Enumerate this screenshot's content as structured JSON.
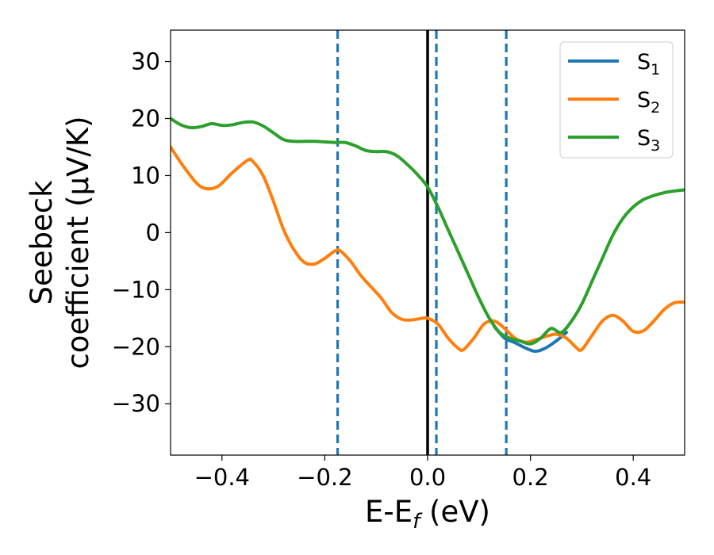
{
  "chart_data": {
    "type": "line",
    "xlabel": {
      "main": "E-E",
      "sub": "f",
      "tail": " (eV)"
    },
    "ylabel": {
      "line1": "Seebeck",
      "line2": "coefficient  (μV/K)"
    },
    "xlim": [
      -0.5,
      0.5
    ],
    "ylim": [
      -39,
      35.5
    ],
    "xticks": [
      -0.4,
      -0.2,
      0.0,
      0.2,
      0.4
    ],
    "xtick_labels": [
      "−0.4",
      "−0.2",
      "0.0",
      "0.2",
      "0.4"
    ],
    "yticks": [
      30,
      20,
      10,
      0,
      -10,
      -20,
      -30
    ],
    "ytick_labels": [
      "30",
      "20",
      "10",
      "0",
      "−10",
      "−20",
      "−30"
    ],
    "grid": false,
    "legend_position": "top-right",
    "vlines": [
      {
        "x": 0.0,
        "style": "solid",
        "color": "#000000"
      },
      {
        "x": -0.175,
        "style": "dashed",
        "color": "#1f77b4"
      },
      {
        "x": 0.017,
        "style": "dashed",
        "color": "#1f77b4"
      },
      {
        "x": 0.153,
        "style": "dashed",
        "color": "#1f77b4"
      }
    ],
    "series": [
      {
        "name": {
          "main": "S",
          "sub": "1"
        },
        "color": "#1f77b4",
        "x": [
          0.13,
          0.15,
          0.17,
          0.19,
          0.21,
          0.23,
          0.25,
          0.27
        ],
        "y": [
          -16.5,
          -18.5,
          -19.3,
          -20.2,
          -20.8,
          -20.2,
          -19.0,
          -17.5
        ]
      },
      {
        "name": {
          "main": "S",
          "sub": "2"
        },
        "color": "#ff7f0e",
        "x": [
          -0.5,
          -0.47,
          -0.44,
          -0.41,
          -0.38,
          -0.35,
          -0.34,
          -0.32,
          -0.3,
          -0.28,
          -0.26,
          -0.24,
          -0.22,
          -0.2,
          -0.18,
          -0.17,
          -0.15,
          -0.13,
          -0.11,
          -0.09,
          -0.07,
          -0.05,
          -0.03,
          -0.01,
          0.0,
          0.02,
          0.04,
          0.06,
          0.07,
          0.09,
          0.11,
          0.13,
          0.15,
          0.17,
          0.19,
          0.21,
          0.23,
          0.25,
          0.27,
          0.29,
          0.3,
          0.32,
          0.34,
          0.36,
          0.38,
          0.4,
          0.42,
          0.44,
          0.46,
          0.48,
          0.5
        ],
        "y": [
          15.0,
          11.0,
          8.0,
          8.0,
          10.5,
          12.7,
          12.5,
          10.0,
          5.5,
          0.5,
          -3.0,
          -5.2,
          -5.5,
          -4.5,
          -3.2,
          -3.2,
          -5.0,
          -7.5,
          -9.5,
          -11.5,
          -14.0,
          -15.2,
          -15.3,
          -15.0,
          -15.0,
          -16.0,
          -18.5,
          -20.3,
          -20.5,
          -18.5,
          -16.0,
          -15.5,
          -16.8,
          -18.5,
          -19.2,
          -18.8,
          -18.2,
          -17.8,
          -18.5,
          -20.2,
          -20.5,
          -18.0,
          -15.5,
          -14.5,
          -15.5,
          -17.3,
          -17.2,
          -15.5,
          -13.5,
          -12.3,
          -12.2
        ]
      },
      {
        "name": {
          "main": "S",
          "sub": "3"
        },
        "color": "#2ca02c",
        "x": [
          -0.5,
          -0.48,
          -0.46,
          -0.44,
          -0.42,
          -0.4,
          -0.38,
          -0.36,
          -0.34,
          -0.32,
          -0.3,
          -0.28,
          -0.26,
          -0.24,
          -0.22,
          -0.2,
          -0.18,
          -0.16,
          -0.14,
          -0.12,
          -0.1,
          -0.08,
          -0.06,
          -0.04,
          -0.02,
          0.0,
          0.02,
          0.04,
          0.06,
          0.08,
          0.1,
          0.12,
          0.14,
          0.16,
          0.18,
          0.2,
          0.22,
          0.24,
          0.26,
          0.28,
          0.3,
          0.32,
          0.34,
          0.36,
          0.38,
          0.4,
          0.42,
          0.44,
          0.46,
          0.48,
          0.5
        ],
        "y": [
          20.0,
          18.9,
          18.4,
          18.6,
          19.1,
          18.8,
          18.9,
          19.3,
          19.4,
          18.7,
          17.5,
          16.3,
          16.0,
          16.0,
          16.0,
          15.9,
          15.8,
          15.8,
          15.2,
          14.4,
          14.2,
          14.2,
          13.5,
          12.0,
          10.2,
          8.0,
          4.5,
          0.5,
          -3.5,
          -7.5,
          -11.5,
          -15.0,
          -17.5,
          -18.5,
          -19.0,
          -19.5,
          -18.5,
          -16.8,
          -17.5,
          -15.5,
          -12.5,
          -8.5,
          -4.5,
          -0.5,
          2.5,
          4.5,
          5.8,
          6.5,
          7.0,
          7.3,
          7.5
        ]
      }
    ]
  }
}
